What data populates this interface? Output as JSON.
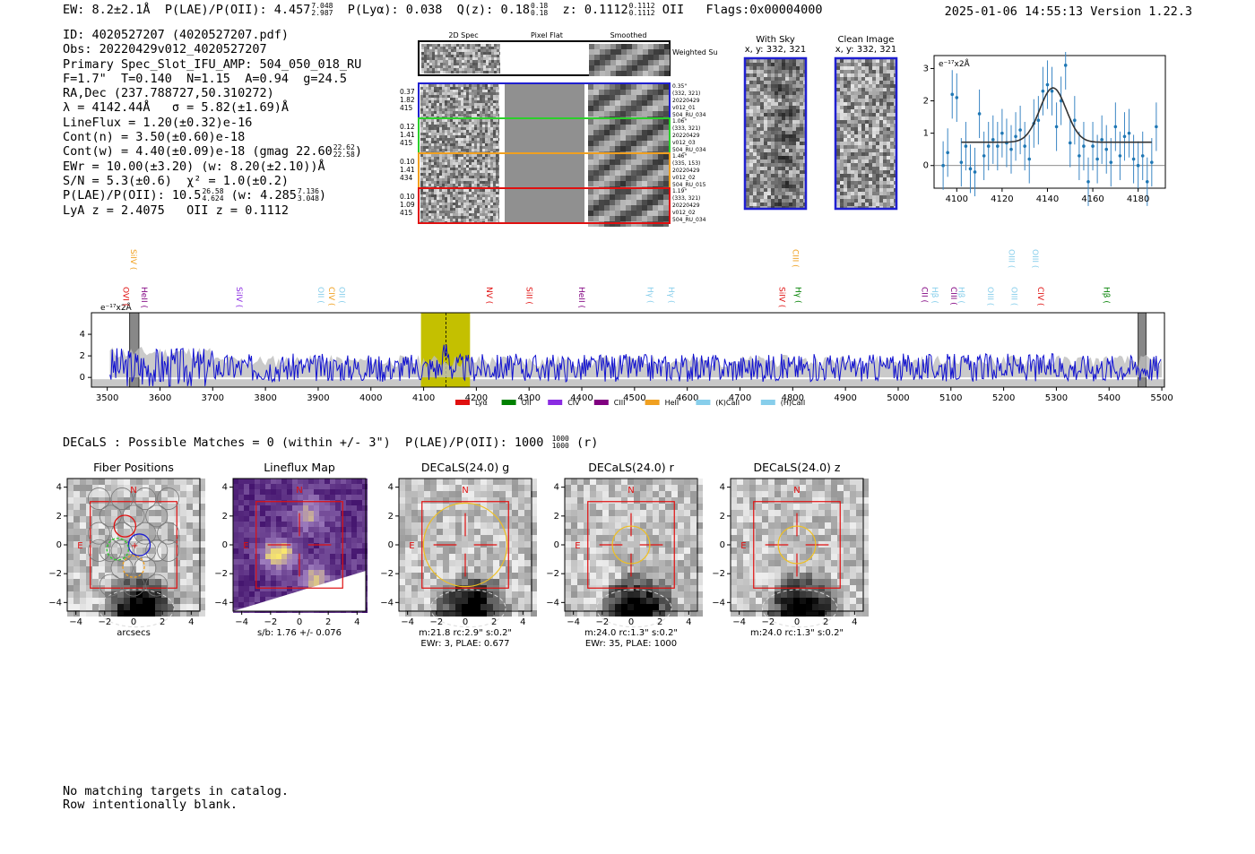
{
  "header": {
    "ew_label": "EW: 8.2±2.1Å",
    "plae_label": "P(LAE)/P(OII): 4.457",
    "plae_hi": "7.048",
    "plae_lo": "2.987",
    "plya_label": "P(Lyα): 0.038",
    "q_label": "Q(z): 0.18",
    "q_hi": "0.18",
    "q_lo": "0.18",
    "z_label": "z: 0.1112",
    "z_hi": "0.1112",
    "z_lo": "0.1112",
    "z_line": "OII",
    "flags": "Flags:0x00004000",
    "timestamp": "2025-01-06 14:55:13",
    "version": "Version 1.22.3"
  },
  "info": {
    "id": "ID: 4020527207 (4020527207.pdf)",
    "obs": "Obs: 20220429v012_4020527207",
    "primary": "Primary Spec_Slot_IFU_AMP: 504_050_018_RU",
    "fiber": "F=1.7\"  T=0.140  N=1.15  A=0.94  g=24.5",
    "radec": "RA,Dec (237.788727,50.310272)",
    "lambda": "λ = 4142.44Å   σ = 5.82(±1.69)Å",
    "lineflux": "LineFlux = 1.20(±0.32)e-16",
    "contn": "Cont(n) = 3.50(±0.60)e-18",
    "contw": "Cont(w) = 4.40(±0.09)e-18 (gmag 22.60",
    "contw_hi": "22.62",
    "contw_lo": "22.58",
    "contw_end": ")",
    "ewr": "EWr = 10.00(±3.20) (w: 8.20(±2.10))Å",
    "sn": "S/N = 5.3(±0.6)  χ² = 1.0(±0.2)",
    "plae": "P(LAE)/P(OII): 10.5",
    "plae_hi": "26.58",
    "plae_lo": "4.624",
    "plae_w": "(w: 4.285",
    "plae_w_hi": "7.136",
    "plae_w_lo": "3.048",
    "plae_w_end": ")",
    "lyaz": "LyA z = 2.4075   OII z = 0.1112"
  },
  "cutouts": {
    "col_2d": "2D Spec",
    "col_flat": "Pixel Flat",
    "col_smooth": "Smoothed",
    "weighted_sum": "Weighted Sum",
    "rows": [
      {
        "w1": "0.37",
        "w2": "1.82",
        "w3": "415",
        "d": "0.35\"",
        "xy": "(332, 321)",
        "date": "20220429",
        "exp": "v012_01",
        "amp": "504_RU_034",
        "color": "#1f1fd0"
      },
      {
        "w1": "0.12",
        "w2": "1.41",
        "w3": "415",
        "d": "1.06\"",
        "xy": "(333, 321)",
        "date": "20220429",
        "exp": "v012_03",
        "amp": "504_RU_034",
        "color": "#2bcf2b"
      },
      {
        "w1": "0.10",
        "w2": "1.41",
        "w3": "434",
        "d": "1.46\"",
        "xy": "(335, 153)",
        "date": "20220429",
        "exp": "v012_02",
        "amp": "504_RU_015",
        "color": "#f0a020"
      },
      {
        "w1": "0.10",
        "w2": "1.09",
        "w3": "415",
        "d": "1.19\"",
        "xy": "(333, 321)",
        "date": "20220429",
        "exp": "v012_02",
        "amp": "504_RU_034",
        "color": "#e01010"
      }
    ],
    "with_sky": "With Sky",
    "with_sky_xy": "x, y: 332, 321",
    "clean": "Clean Image",
    "clean_xy": "x, y: 332, 321"
  },
  "chart_data": [
    {
      "type": "scatter",
      "name": "line-fit-zoom",
      "units_label": "e⁻¹⁷x2Å",
      "xlim": [
        4090,
        4192
      ],
      "ylim": [
        -0.7,
        3.4
      ],
      "xticks": [
        4100,
        4120,
        4140,
        4160,
        4180
      ],
      "yticks": [
        0,
        1,
        2,
        3
      ],
      "x": [
        4094,
        4096,
        4098,
        4100,
        4102,
        4104,
        4106,
        4108,
        4110,
        4112,
        4114,
        4116,
        4118,
        4120,
        4122,
        4124,
        4126,
        4128,
        4130,
        4132,
        4134,
        4136,
        4138,
        4140,
        4142,
        4144,
        4146,
        4148,
        4150,
        4152,
        4154,
        4156,
        4158,
        4160,
        4162,
        4164,
        4166,
        4168,
        4170,
        4172,
        4174,
        4176,
        4178,
        4180,
        4182,
        4184,
        4186,
        4188
      ],
      "y": [
        0.0,
        0.4,
        2.2,
        2.1,
        0.1,
        0.6,
        -0.1,
        -0.2,
        1.6,
        0.3,
        0.6,
        0.8,
        0.6,
        1.0,
        0.7,
        0.5,
        0.9,
        1.1,
        0.6,
        0.2,
        1.3,
        1.4,
        2.3,
        2.5,
        2.3,
        1.2,
        2.0,
        3.1,
        0.7,
        1.4,
        0.3,
        0.6,
        -0.5,
        0.6,
        0.2,
        0.8,
        0.5,
        0.1,
        1.2,
        0.3,
        0.9,
        1.0,
        0.2,
        0.0,
        0.3,
        -0.5,
        0.1,
        1.2
      ],
      "err": 0.75,
      "fit": {
        "continuum": 0.72,
        "amplitude": 1.68,
        "center": 4142.44,
        "sigma": 5.82
      }
    },
    {
      "type": "line",
      "name": "full-spectrum",
      "units_label": "e⁻¹⁷x2Å",
      "xlim": [
        3470,
        5505
      ],
      "ylim": [
        -0.9,
        6.0
      ],
      "xticks": [
        3500,
        3600,
        3700,
        3800,
        3900,
        4000,
        4100,
        4200,
        4300,
        4400,
        4500,
        4600,
        4700,
        4800,
        4900,
        5000,
        5100,
        5200,
        5300,
        5400,
        5500
      ],
      "yticks": [
        0,
        2,
        4
      ],
      "highlight": [
        4095,
        4188
      ],
      "marker": 4142.44,
      "masked": [
        [
          3505,
          3560
        ],
        [
          5455,
          5470
        ]
      ],
      "lines": [
        {
          "label": "OVI",
          "x": 3525,
          "color": "#e01010",
          "level": "mid"
        },
        {
          "label": "HeII",
          "x": 3560,
          "color": "#800080",
          "level": "mid"
        },
        {
          "label": "SiIV",
          "x": 3540,
          "color": "#f0a020",
          "level": "top"
        },
        {
          "label": "SiIV",
          "x": 3740,
          "color": "#8a2be2",
          "level": "mid"
        },
        {
          "label": "OII",
          "x": 3895,
          "color": "#87ceeb",
          "level": "mid"
        },
        {
          "label": "CIV",
          "x": 3915,
          "color": "#f0a020",
          "level": "mid"
        },
        {
          "label": "OII",
          "x": 3935,
          "color": "#87ceeb",
          "level": "mid"
        },
        {
          "label": "NV",
          "x": 4215,
          "color": "#e01010",
          "level": "mid"
        },
        {
          "label": "SiII",
          "x": 4290,
          "color": "#e01010",
          "level": "mid"
        },
        {
          "label": "HeII",
          "x": 4390,
          "color": "#800080",
          "level": "mid"
        },
        {
          "label": "Hγ",
          "x": 4520,
          "color": "#87ceeb",
          "level": "mid"
        },
        {
          "label": "Hγ",
          "x": 4560,
          "color": "#87ceeb",
          "level": "mid"
        },
        {
          "label": "SiIV",
          "x": 4770,
          "color": "#e01010",
          "level": "mid"
        },
        {
          "label": "Hγ",
          "x": 4800,
          "color": "#008000",
          "level": "mid"
        },
        {
          "label": "CIII",
          "x": 4795,
          "color": "#f0a020",
          "level": "top"
        },
        {
          "label": "CII",
          "x": 5040,
          "color": "#800080",
          "level": "mid"
        },
        {
          "label": "Hβ",
          "x": 5060,
          "color": "#87ceeb",
          "level": "mid"
        },
        {
          "label": "CIII",
          "x": 5095,
          "color": "#800080",
          "level": "mid"
        },
        {
          "label": "Hβ",
          "x": 5110,
          "color": "#87ceeb",
          "level": "mid"
        },
        {
          "label": "OIII",
          "x": 5165,
          "color": "#87ceeb",
          "level": "mid"
        },
        {
          "label": "OIII",
          "x": 5210,
          "color": "#87ceeb",
          "level": "mid"
        },
        {
          "label": "OIII",
          "x": 5205,
          "color": "#87ceeb",
          "level": "top"
        },
        {
          "label": "OIII",
          "x": 5250,
          "color": "#87ceeb",
          "level": "top"
        },
        {
          "label": "CIV",
          "x": 5260,
          "color": "#e01010",
          "level": "mid"
        },
        {
          "label": "Hβ",
          "x": 5385,
          "color": "#008000",
          "level": "mid"
        }
      ],
      "legend": [
        {
          "label": "Lyα",
          "color": "#e01010"
        },
        {
          "label": "OII",
          "color": "#008000"
        },
        {
          "label": "CIV",
          "color": "#8a2be2"
        },
        {
          "label": "CIII",
          "color": "#800080"
        },
        {
          "label": "HeII",
          "color": "#f0a020"
        },
        {
          "label": "(K)CaII",
          "color": "#87ceeb"
        },
        {
          "label": "(H)CaII",
          "color": "#87ceeb"
        }
      ]
    }
  ],
  "decals": {
    "summary": "DECaLS : Possible Matches = 0 (within +/- 3\")  P(LAE)/P(OII): 1000",
    "summary_hi": "1000",
    "summary_lo": "1000",
    "summary_end": "(r)",
    "panels": [
      {
        "title": "Fiber Positions",
        "cap1": "arcsecs",
        "cap2": ""
      },
      {
        "title": "Lineflux Map",
        "cap1": "s/b: 1.76 +/- 0.076",
        "cap2": ""
      },
      {
        "title": "DECaLS(24.0) g",
        "cap1": "m:21.8 rc:2.9\"  s:0.2\"",
        "cap2": "EWr: 3, PLAE: 0.677"
      },
      {
        "title": "DECaLS(24.0) r",
        "cap1": "m:24.0 rc:1.3\"  s:0.2\"",
        "cap2": "EWr: 35, PLAE: 1000"
      },
      {
        "title": "DECaLS(24.0) z",
        "cap1": "m:24.0 rc:1.3\"  s:0.2\"",
        "cap2": ""
      }
    ],
    "axis_ticks": [
      -4,
      -2,
      0,
      2,
      4
    ],
    "north": "N",
    "east": "E"
  },
  "footer": {
    "line1": "No matching targets in catalog.",
    "line2": "Row intentionally blank."
  }
}
